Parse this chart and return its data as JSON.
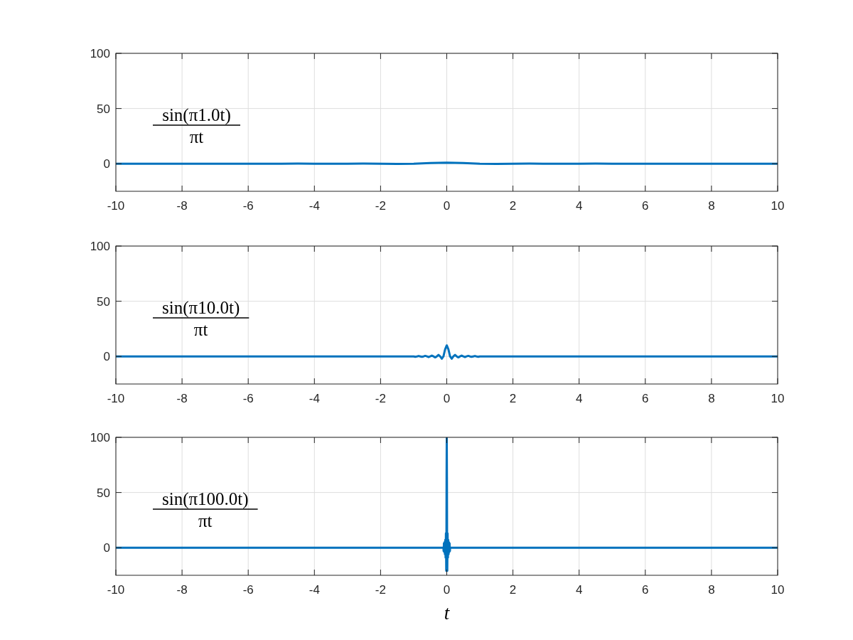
{
  "chart_data": [
    {
      "type": "line",
      "color": "#0072bd",
      "xlim": [
        -10,
        10
      ],
      "xticks": [
        -10,
        -8,
        -6,
        -4,
        -2,
        0,
        2,
        4,
        6,
        8,
        10
      ],
      "ylim": [
        -25,
        100
      ],
      "yticks": [
        0,
        50,
        100
      ],
      "grid": true,
      "annotations": [
        "sin(π1.0t)",
        "πt"
      ],
      "x": [
        -10,
        -9.5,
        -9,
        -8.5,
        -8,
        -7.5,
        -7,
        -6.5,
        -6,
        -5.5,
        -5,
        -4.5,
        -4,
        -3.5,
        -3,
        -2.5,
        -2,
        -1.5,
        -1,
        -0.5,
        0,
        0.5,
        1,
        1.5,
        2,
        2.5,
        3,
        3.5,
        4,
        4.5,
        5,
        5.5,
        6,
        6.5,
        7,
        7.5,
        8,
        8.5,
        9,
        9.5,
        10
      ],
      "values": [
        0,
        0,
        0,
        0,
        0,
        0,
        0,
        0,
        0,
        -0.1,
        0,
        0.1,
        0,
        -0.1,
        0,
        0.1,
        0,
        -0.2,
        0,
        0.6,
        1,
        0.6,
        0,
        -0.2,
        0,
        0.1,
        0,
        -0.1,
        0,
        0.1,
        0,
        -0.1,
        0,
        0,
        0,
        0,
        0,
        0,
        0,
        0,
        0
      ]
    },
    {
      "type": "line",
      "color": "#0072bd",
      "xlim": [
        -10,
        10
      ],
      "xticks": [
        -10,
        -8,
        -6,
        -4,
        -2,
        0,
        2,
        4,
        6,
        8,
        10
      ],
      "ylim": [
        -25,
        100
      ],
      "yticks": [
        0,
        50,
        100
      ],
      "grid": true,
      "annotations": [
        "sin(π10.0t)",
        "πt"
      ],
      "x": [
        -10,
        -1,
        -0.95,
        -0.9,
        -0.85,
        -0.8,
        -0.75,
        -0.7,
        -0.65,
        -0.6,
        -0.55,
        -0.5,
        -0.45,
        -0.4,
        -0.35,
        -0.3,
        -0.25,
        -0.2,
        -0.15,
        -0.1,
        -0.05,
        0,
        0.05,
        0.1,
        0.15,
        0.2,
        0.25,
        0.3,
        0.35,
        0.4,
        0.45,
        0.5,
        0.55,
        0.6,
        0.65,
        0.7,
        0.75,
        0.8,
        0.85,
        0.9,
        0.95,
        1,
        10
      ],
      "values": [
        0,
        0,
        -0.3,
        0,
        0.4,
        0,
        -0.4,
        0,
        0.5,
        0,
        -0.6,
        0,
        0.7,
        0,
        -0.9,
        0,
        1.3,
        0,
        -2.1,
        0,
        6.4,
        10,
        6.4,
        0,
        -2.1,
        0,
        1.3,
        0,
        -0.9,
        0,
        0.7,
        0,
        -0.6,
        0,
        0.5,
        0,
        -0.4,
        0,
        0.4,
        0,
        -0.3,
        0,
        0
      ]
    },
    {
      "type": "line",
      "color": "#0072bd",
      "xlim": [
        -10,
        10
      ],
      "xticks": [
        -10,
        -8,
        -6,
        -4,
        -2,
        0,
        2,
        4,
        6,
        8,
        10
      ],
      "ylim": [
        -25,
        100
      ],
      "yticks": [
        0,
        50,
        100
      ],
      "grid": true,
      "xlabel": "t",
      "annotations": [
        "sin(π100.0t)",
        "πt"
      ],
      "x": [
        -10,
        -0.1,
        -0.095,
        -0.09,
        -0.085,
        -0.08,
        -0.075,
        -0.07,
        -0.065,
        -0.06,
        -0.055,
        -0.05,
        -0.045,
        -0.04,
        -0.035,
        -0.03,
        -0.025,
        -0.02,
        -0.015,
        -0.01,
        -0.005,
        0,
        0.005,
        0.01,
        0.015,
        0.02,
        0.025,
        0.03,
        0.035,
        0.04,
        0.045,
        0.05,
        0.055,
        0.06,
        0.065,
        0.07,
        0.075,
        0.08,
        0.085,
        0.09,
        0.095,
        0.1,
        10
      ],
      "values": [
        0,
        0,
        -3,
        0,
        4,
        0,
        -4,
        0,
        5,
        0,
        -6,
        0,
        7,
        0,
        -9,
        0,
        13,
        0,
        -21,
        0,
        64,
        100,
        64,
        0,
        -21,
        0,
        13,
        0,
        -9,
        0,
        7,
        0,
        -6,
        0,
        5,
        0,
        -4,
        0,
        4,
        0,
        -3,
        0,
        0
      ]
    }
  ]
}
